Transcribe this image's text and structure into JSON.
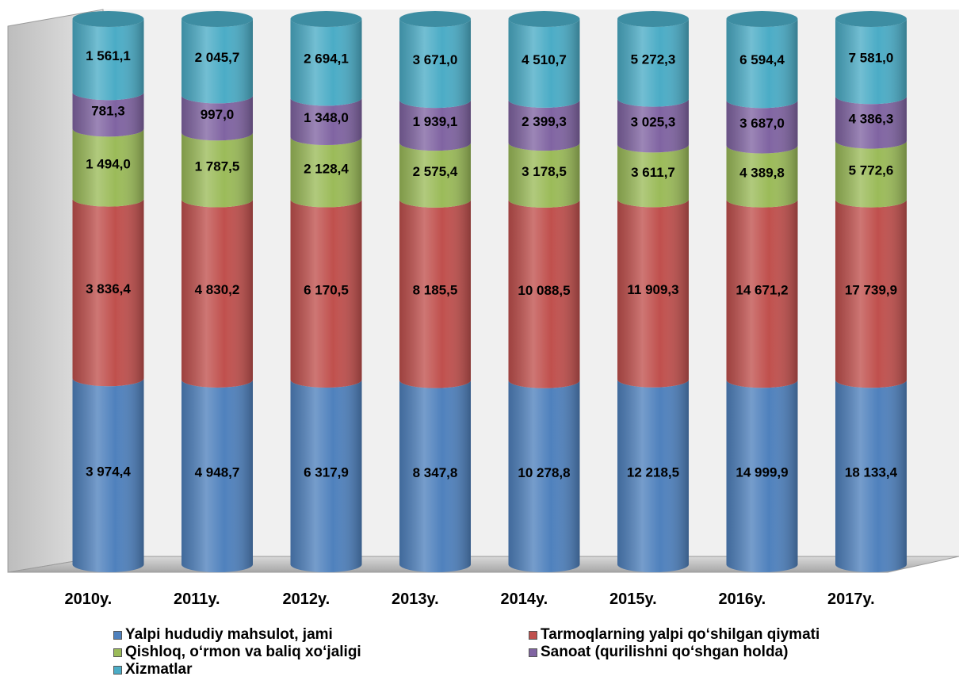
{
  "chart_data": {
    "type": "bar",
    "stacked": true,
    "categories": [
      "2010y.",
      "2011y.",
      "2012y.",
      "2013y.",
      "2014y.",
      "2015y.",
      "2016y.",
      "2017y."
    ],
    "series": [
      {
        "name": "Yalpi hududiy mahsulot, jami",
        "color": "#4F81BD",
        "values": [
          3974.4,
          4948.7,
          6317.9,
          8347.8,
          10278.8,
          12218.5,
          14999.9,
          18133.4
        ],
        "labels": [
          "3 974,4",
          "4 948,7",
          "6 317,9",
          "8 347,8",
          "10 278,8",
          "12 218,5",
          "14 999,9",
          "18 133,4"
        ]
      },
      {
        "name": "Tarmoqlarning yalpi qo‘shilgan qiymati",
        "color": "#C0504D",
        "values": [
          3836.4,
          4830.2,
          6170.5,
          8185.5,
          10088.5,
          11909.3,
          14671.2,
          17739.9
        ],
        "labels": [
          "3 836,4",
          "4 830,2",
          "6 170,5",
          "8 185,5",
          "10 088,5",
          "11 909,3",
          "14 671,2",
          "17 739,9"
        ]
      },
      {
        "name": "Qishloq, o‘rmon va baliq xo‘jaligi",
        "color": "#9BBB59",
        "values": [
          1494.0,
          1787.5,
          2128.4,
          2575.4,
          3178.5,
          3611.7,
          4389.8,
          5772.6
        ],
        "labels": [
          "1 494,0",
          "1 787,5",
          "2 128,4",
          "2 575,4",
          "3 178,5",
          "3 611,7",
          "4 389,8",
          "5 772,6"
        ]
      },
      {
        "name": "Sanoat (qurilishni qo‘shgan holda)",
        "color": "#8064A2",
        "values": [
          781.3,
          997.0,
          1348.0,
          1939.1,
          2399.3,
          3025.3,
          3687.0,
          4386.3
        ],
        "labels": [
          "781,3",
          "997,0",
          "1 348,0",
          "1 939,1",
          "2 399,3",
          "3 025,3",
          "3 687,0",
          "4 386,3"
        ]
      },
      {
        "name": "Xizmatlar",
        "color": "#4BACC6",
        "values": [
          1561.1,
          2045.7,
          2694.1,
          3671.0,
          4510.7,
          5272.3,
          6594.4,
          7581.0
        ],
        "labels": [
          "1 561,1",
          "2 045,7",
          "2 694,1",
          "3 671,0",
          "4 510,7",
          "5 272,3",
          "6 594,4",
          "7 581,0"
        ]
      }
    ],
    "normalized": "100% stacked",
    "legend_position": "bottom",
    "grid": false
  }
}
